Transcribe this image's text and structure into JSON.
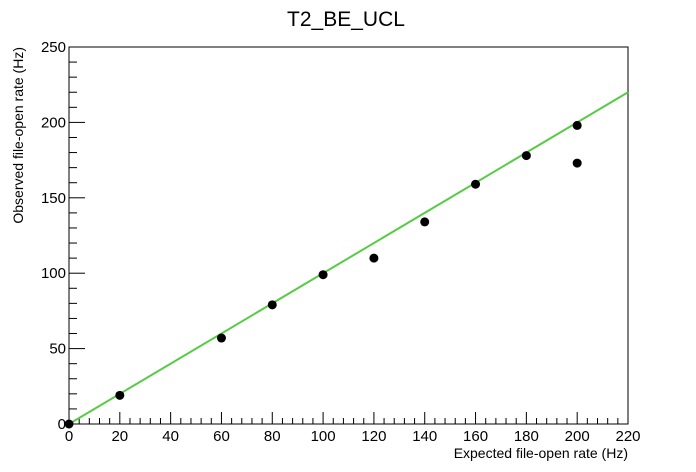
{
  "chart_data": {
    "type": "scatter",
    "title": "T2_BE_UCL",
    "xlabel": "Expected file-open rate (Hz)",
    "ylabel": "Observed file-open rate (Hz)",
    "xlim": [
      0,
      220
    ],
    "ylim": [
      0,
      250
    ],
    "xticks": [
      0,
      20,
      40,
      60,
      80,
      100,
      120,
      140,
      160,
      180,
      200,
      220
    ],
    "yticks": [
      0,
      50,
      100,
      150,
      200,
      250
    ],
    "grid": false,
    "series": [
      {
        "color": "#000000",
        "marker": "filled-circle",
        "points": [
          {
            "x": 0,
            "y": 0
          },
          {
            "x": 20,
            "y": 19
          },
          {
            "x": 60,
            "y": 57
          },
          {
            "x": 80,
            "y": 79
          },
          {
            "x": 100,
            "y": 99
          },
          {
            "x": 120,
            "y": 110
          },
          {
            "x": 140,
            "y": 134
          },
          {
            "x": 160,
            "y": 159
          },
          {
            "x": 180,
            "y": 178
          },
          {
            "x": 200,
            "y": 198
          },
          {
            "x": 200,
            "y": 173
          }
        ]
      }
    ],
    "reference_line": {
      "color": "#55cc44",
      "points": [
        {
          "x": 0,
          "y": 0
        },
        {
          "x": 220,
          "y": 220
        }
      ]
    }
  }
}
